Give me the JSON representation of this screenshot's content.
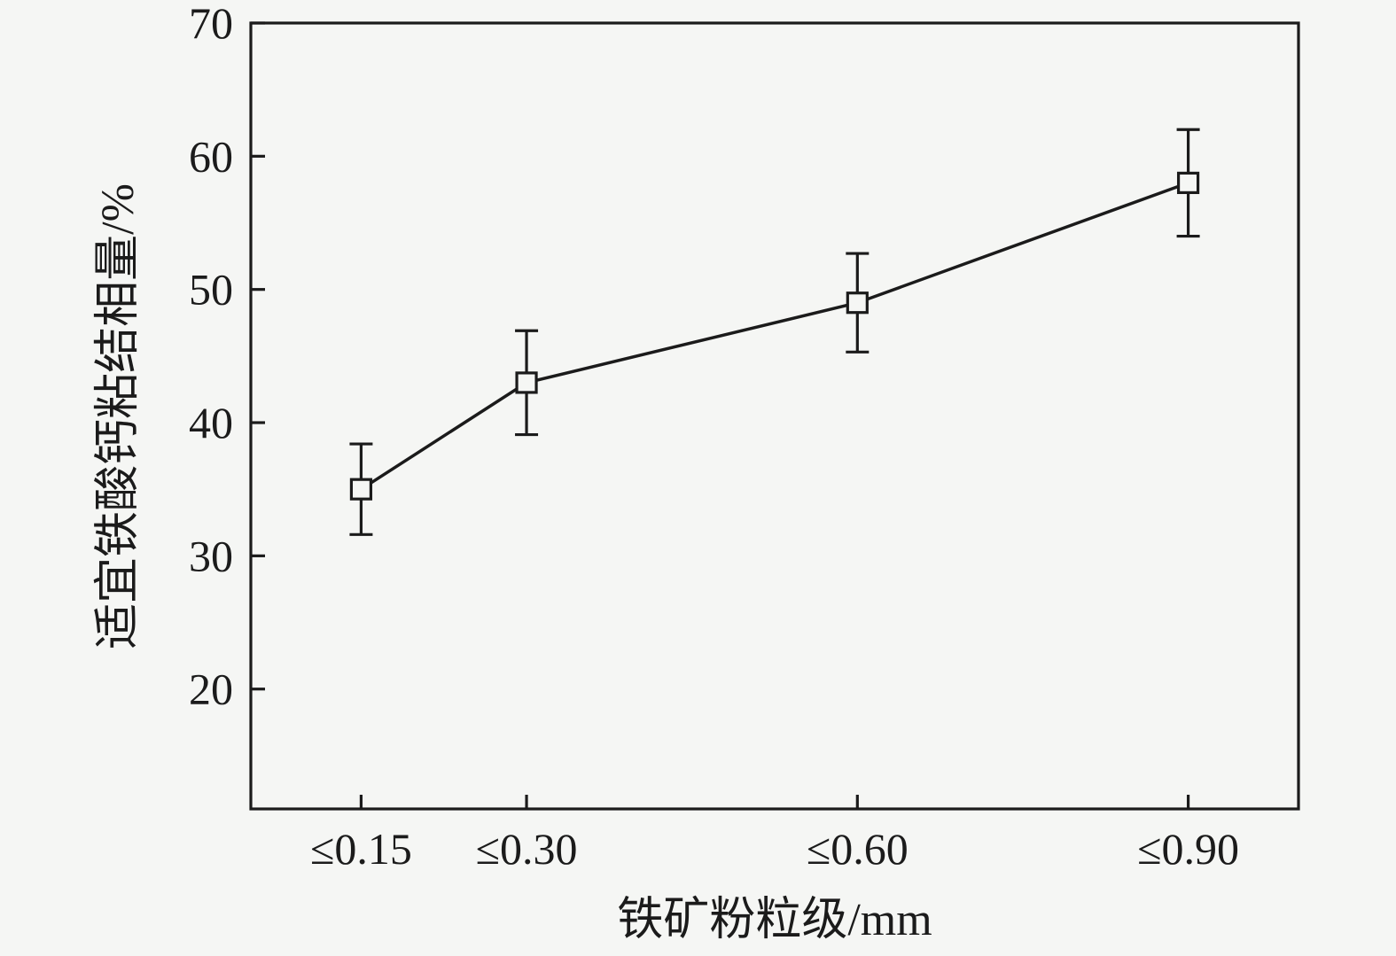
{
  "chart_data": {
    "type": "line",
    "title": "",
    "xlabel": "铁矿粉粒级/mm",
    "ylabel": "适宜铁酸钙粘结相量/%",
    "categories": [
      "≤0.15",
      "≤0.30",
      "≤0.60",
      "≤0.90"
    ],
    "x_numeric": [
      0.15,
      0.3,
      0.6,
      0.9
    ],
    "series": [
      {
        "name": "适宜铁酸钙粘结相量",
        "values": [
          35,
          43,
          49,
          58
        ],
        "errors": [
          3.4,
          3.9,
          3.7,
          4.0
        ]
      }
    ],
    "y_ticks": [
      20,
      30,
      40,
      50,
      60,
      70
    ],
    "ylim": [
      11,
      70
    ],
    "xlim": [
      0.05,
      1.0
    ],
    "grid": false,
    "legend": "none",
    "marker": "open-square",
    "colors": {
      "line": "#1b1b1b",
      "marker_fill": "#f5f6f4",
      "background": "#f5f6f4"
    }
  }
}
